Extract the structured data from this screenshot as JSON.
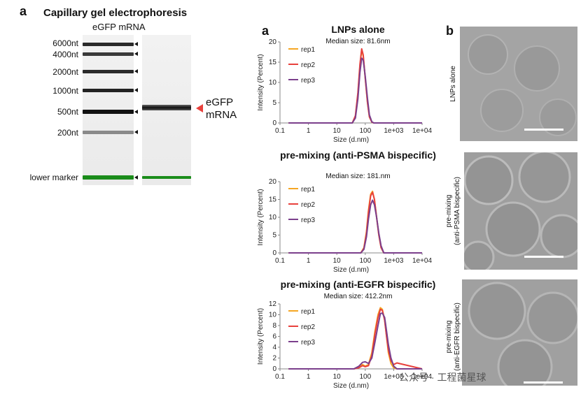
{
  "panel_a_label": "a",
  "panel_a2_label": "a",
  "panel_b_label": "b",
  "gel": {
    "title": "Capillary gel electrophoresis",
    "subtitle": "eGFP mRNA",
    "ladder": [
      "6000nt",
      "4000nt",
      "2000nt",
      "1000nt",
      "500nt",
      "200nt"
    ],
    "lower_marker": "lower marker",
    "sample_label_line1": "eGFP",
    "sample_label_line2": "mRNA",
    "marker_color": "#1a8c1a"
  },
  "chart_data": [
    {
      "type": "line",
      "title": "LNPs alone",
      "subtitle": "Median size: 81.6nm",
      "xlabel": "Size (d.nm)",
      "ylabel": "Intensity (Percent)",
      "xscale": "log",
      "xlim": [
        0.1,
        10000
      ],
      "ylim": [
        0,
        20
      ],
      "xticks": [
        "0.1",
        "1",
        "10",
        "100",
        "1e+03",
        "1e+04"
      ],
      "yticks": [
        "0",
        "5",
        "10",
        "15",
        "20"
      ],
      "legend": "top-left",
      "series": [
        {
          "name": "rep1",
          "color": "#f5a623",
          "x": [
            0.2,
            35,
            45,
            55,
            65,
            75,
            85,
            100,
            120,
            140,
            170,
            200,
            10000
          ],
          "y": [
            0,
            0,
            1.5,
            7,
            14,
            18,
            16.5,
            11,
            5,
            1.5,
            0.2,
            0,
            0
          ]
        },
        {
          "name": "rep2",
          "color": "#e8403c",
          "x": [
            0.2,
            35,
            45,
            55,
            65,
            75,
            85,
            100,
            120,
            140,
            170,
            200,
            10000
          ],
          "y": [
            0,
            0,
            1.8,
            7.5,
            14.5,
            18.3,
            16.8,
            11,
            5,
            1.5,
            0.2,
            0,
            0
          ]
        },
        {
          "name": "rep3",
          "color": "#7b3f8c",
          "x": [
            0.2,
            35,
            45,
            55,
            65,
            75,
            85,
            100,
            120,
            140,
            170,
            200,
            10000
          ],
          "y": [
            0,
            0,
            1.2,
            6,
            12.5,
            16,
            15.5,
            11.5,
            6,
            2,
            0.3,
            0,
            0
          ]
        }
      ]
    },
    {
      "type": "line",
      "title": "pre-mixing (anti-PSMA bispecific)",
      "subtitle": "Median size: 181.nm",
      "xlabel": "Size (d.nm)",
      "ylabel": "Intensity (Percent)",
      "xscale": "log",
      "xlim": [
        0.1,
        10000
      ],
      "ylim": [
        0,
        20
      ],
      "xticks": [
        "0.1",
        "1",
        "10",
        "100",
        "1e+03",
        "1e+04"
      ],
      "yticks": [
        "0",
        "5",
        "10",
        "15",
        "20"
      ],
      "legend": "top-left",
      "series": [
        {
          "name": "rep1",
          "color": "#f5a623",
          "x": [
            0.2,
            70,
            90,
            110,
            130,
            155,
            180,
            210,
            250,
            300,
            360,
            450,
            10000
          ],
          "y": [
            0,
            0,
            1.5,
            6,
            12,
            16.5,
            17.3,
            15,
            10,
            5,
            1.5,
            0,
            0
          ]
        },
        {
          "name": "rep2",
          "color": "#e8403c",
          "x": [
            0.2,
            70,
            90,
            110,
            130,
            155,
            180,
            210,
            250,
            300,
            360,
            450,
            10000
          ],
          "y": [
            0,
            0,
            1.3,
            5.5,
            11.5,
            16,
            17,
            15,
            10,
            5,
            1.5,
            0,
            0
          ]
        },
        {
          "name": "rep3",
          "color": "#7b3f8c",
          "x": [
            0.2,
            70,
            90,
            110,
            130,
            155,
            180,
            210,
            250,
            300,
            360,
            450,
            10000
          ],
          "y": [
            0,
            0,
            1,
            4.5,
            9.5,
            13.5,
            14.8,
            13.5,
            10,
            5.5,
            2,
            0,
            0
          ]
        }
      ]
    },
    {
      "type": "line",
      "title": "pre-mixing (anti-EGFR bispecific)",
      "subtitle": "Median size: 412.2nm",
      "xlabel": "Size (d.nm)",
      "ylabel": "Intensity (Percent)",
      "xscale": "log",
      "xlim": [
        0.1,
        10000
      ],
      "ylim": [
        0,
        12
      ],
      "xticks": [
        "0.1",
        "1",
        "10",
        "100",
        "1e+03",
        "1e+04"
      ],
      "yticks": [
        "0",
        "2",
        "4",
        "6",
        "8",
        "10",
        "12"
      ],
      "legend": "top-left",
      "series": [
        {
          "name": "rep1",
          "color": "#f5a623",
          "x": [
            0.2,
            40,
            60,
            80,
            100,
            130,
            170,
            220,
            280,
            340,
            400,
            480,
            560,
            650,
            800,
            1000,
            1300,
            10000
          ],
          "y": [
            0,
            0,
            0.3,
            0.8,
            0.5,
            0.8,
            3,
            7,
            10,
            11.3,
            11,
            9,
            6,
            3,
            1,
            0.2,
            0,
            0
          ]
        },
        {
          "name": "rep2",
          "color": "#e8403c",
          "x": [
            0.2,
            40,
            60,
            80,
            100,
            130,
            170,
            220,
            280,
            340,
            400,
            480,
            560,
            650,
            800,
            1000,
            1300,
            10000
          ],
          "y": [
            0,
            0,
            0.2,
            0.6,
            0.4,
            0.6,
            2.5,
            6.5,
            9.5,
            11,
            10.8,
            9,
            6,
            3.5,
            1.5,
            0.8,
            1.1,
            0
          ]
        },
        {
          "name": "rep3",
          "color": "#7b3f8c",
          "x": [
            0.2,
            40,
            60,
            80,
            100,
            130,
            170,
            220,
            280,
            340,
            400,
            480,
            560,
            650,
            800,
            1000,
            1300,
            10000
          ],
          "y": [
            0,
            0,
            0.5,
            1.2,
            1.3,
            1,
            2,
            5,
            8,
            10.2,
            10.3,
            9.5,
            7,
            4.5,
            2,
            0.5,
            0,
            0
          ]
        }
      ]
    }
  ],
  "em": {
    "labels": [
      {
        "line1": "LNPs alone",
        "line2": ""
      },
      {
        "line1": "pre-mixing",
        "line2": "(anti-PSMA bispecific)"
      },
      {
        "line1": "pre-mixing",
        "line2": "(anti-EGFR bispecific)"
      }
    ]
  },
  "watermark": "公众号 · 工程菌星球"
}
